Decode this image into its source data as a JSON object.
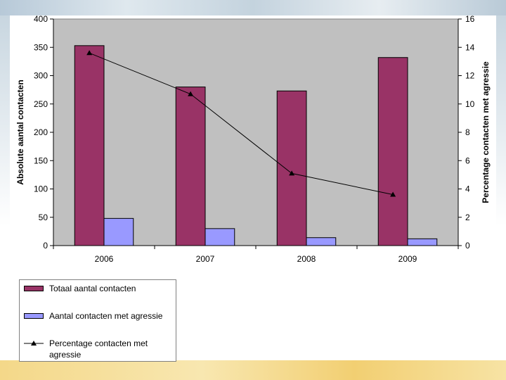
{
  "chart_data": {
    "type": "bar",
    "categories": [
      "2006",
      "2007",
      "2008",
      "2009"
    ],
    "series": [
      {
        "name": "Totaal aantal contacten",
        "kind": "bar",
        "axis": "left",
        "color": "#993366",
        "values": [
          353,
          280,
          273,
          332
        ]
      },
      {
        "name": "Aantal contacten met agressie",
        "kind": "bar",
        "axis": "left",
        "color": "#9999ff",
        "values": [
          48,
          30,
          14,
          12
        ]
      },
      {
        "name": "Percentage contacten met agressie",
        "kind": "line",
        "axis": "right",
        "color": "#000000",
        "marker": "triangle",
        "values": [
          13.6,
          10.7,
          5.1,
          3.6
        ]
      }
    ],
    "ylabel": "Absolute aantal contacten",
    "y2label": "Percentage contacten met agressie",
    "ylim": [
      0,
      400
    ],
    "y2lim": [
      0,
      16
    ],
    "yticks": [
      "0",
      "50",
      "100",
      "150",
      "200",
      "250",
      "300",
      "350",
      "400"
    ],
    "y2ticks": [
      "0",
      "2",
      "4",
      "6",
      "8",
      "10",
      "12",
      "14",
      "16"
    ],
    "plot_background": "#c0c0c0",
    "gridlines": false,
    "legend_position": "bottom-left"
  },
  "legend": {
    "items": [
      "Totaal aantal contacten",
      "Aantal contacten met agressie",
      "Percentage contacten met agressie"
    ]
  }
}
